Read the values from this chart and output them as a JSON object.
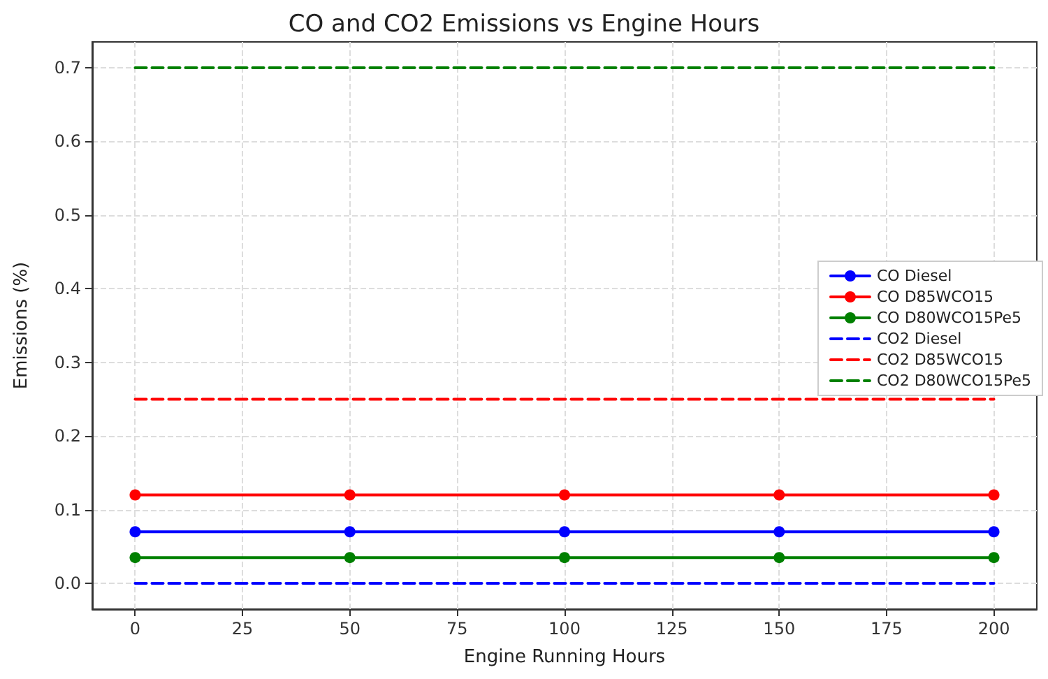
{
  "chart_data": {
    "type": "line",
    "title": "CO and CO2 Emissions vs Engine Hours",
    "xlabel": "Engine Running Hours",
    "ylabel": "Emissions (%)",
    "x": [
      0,
      50,
      100,
      150,
      200
    ],
    "series": [
      {
        "name": "CO Diesel",
        "color": "#0000ff",
        "values": [
          0.07,
          0.07,
          0.07,
          0.07,
          0.07
        ],
        "marker": "circle",
        "line_style": "solid"
      },
      {
        "name": "CO D85WCO15",
        "color": "#ff0000",
        "values": [
          0.12,
          0.12,
          0.12,
          0.12,
          0.12
        ],
        "marker": "circle",
        "line_style": "solid"
      },
      {
        "name": "CO D80WCO15Pe5",
        "color": "#008000",
        "values": [
          0.035,
          0.035,
          0.035,
          0.035,
          0.035
        ],
        "marker": "circle",
        "line_style": "solid"
      },
      {
        "name": "CO2 Diesel",
        "color": "#0000ff",
        "values": [
          0,
          0,
          0,
          0,
          0
        ],
        "marker": "none",
        "line_style": "dashed"
      },
      {
        "name": "CO2 D85WCO15",
        "color": "#ff0000",
        "values": [
          0.25,
          0.25,
          0.25,
          0.25,
          0.25
        ],
        "marker": "none",
        "line_style": "dashed"
      },
      {
        "name": "CO2 D80WCO15Pe5",
        "color": "#008000",
        "values": [
          0.7,
          0.7,
          0.7,
          0.7,
          0.7
        ],
        "marker": "none",
        "line_style": "dashed"
      }
    ],
    "xlim": [
      -10,
      210
    ],
    "xticks": [
      0,
      25,
      50,
      75,
      100,
      125,
      150,
      175,
      200
    ],
    "ylim": [
      -0.035,
      0.735
    ],
    "yticks": [
      {
        "value": 0,
        "label": "0.0"
      },
      {
        "value": 0.1,
        "label": "0.1"
      },
      {
        "value": 0.2,
        "label": "0.2"
      },
      {
        "value": 0.3,
        "label": "0.3"
      },
      {
        "value": 0.4,
        "label": "0.4"
      },
      {
        "value": 0.5,
        "label": "0.5"
      },
      {
        "value": 0.6,
        "label": "0.6"
      },
      {
        "value": 0.7,
        "label": "0.7"
      }
    ],
    "grid": true,
    "legend": "right"
  }
}
